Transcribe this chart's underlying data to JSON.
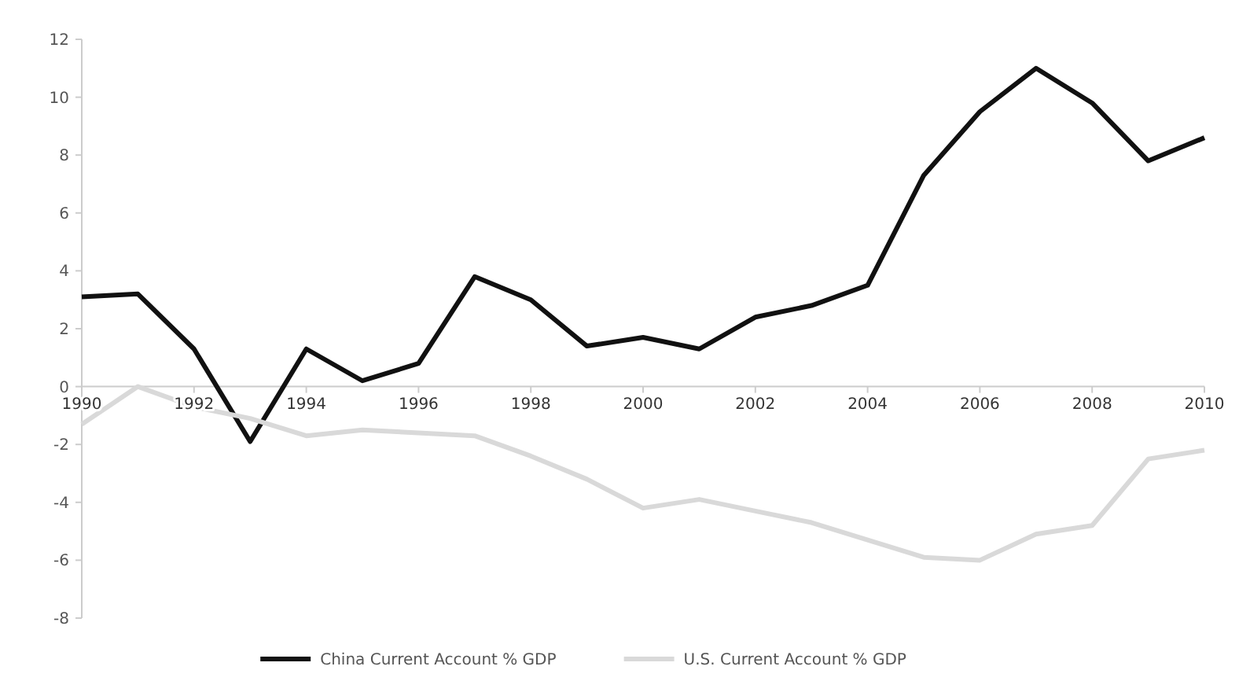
{
  "chart_data": {
    "type": "line",
    "x": [
      1990,
      1991,
      1992,
      1993,
      1994,
      1995,
      1996,
      1997,
      1998,
      1999,
      2000,
      2001,
      2002,
      2003,
      2004,
      2005,
      2006,
      2007,
      2008,
      2009,
      2010
    ],
    "series": [
      {
        "name": "China Current Account % GDP",
        "color": "#111111",
        "values": [
          3.1,
          3.2,
          1.3,
          -1.9,
          1.3,
          0.2,
          0.8,
          3.8,
          3.0,
          1.4,
          1.7,
          1.3,
          2.4,
          2.8,
          3.5,
          7.3,
          9.5,
          11.0,
          9.8,
          7.8,
          8.6
        ]
      },
      {
        "name": "U.S. Current Account % GDP",
        "color": "#d9d9d9",
        "values": [
          -1.3,
          0.0,
          -0.7,
          -1.1,
          -1.7,
          -1.5,
          -1.6,
          -1.7,
          -2.4,
          -3.2,
          -4.2,
          -3.9,
          -4.3,
          -4.7,
          -5.3,
          -5.9,
          -6.0,
          -5.1,
          -4.8,
          -2.5,
          -2.2
        ]
      }
    ],
    "xlim": [
      1990,
      2010
    ],
    "xticks": [
      1990,
      1992,
      1994,
      1996,
      1998,
      2000,
      2002,
      2004,
      2006,
      2008,
      2010
    ],
    "ylim": [
      -8,
      12
    ],
    "yticks": [
      -8,
      -6,
      -4,
      -2,
      0,
      2,
      4,
      6,
      8,
      10,
      12
    ],
    "grid": false,
    "legend": "bottom",
    "marker": "none",
    "line_style": "solid"
  }
}
